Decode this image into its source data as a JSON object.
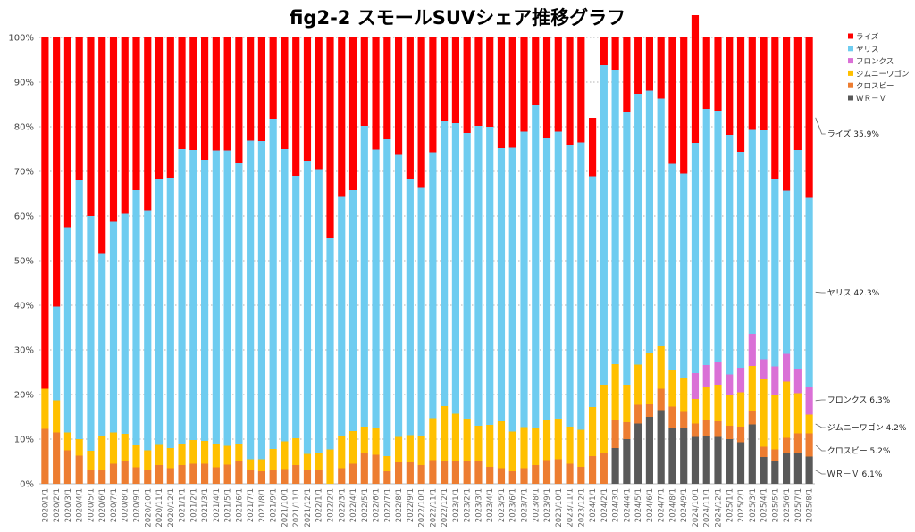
{
  "chart_data": {
    "type": "bar",
    "stacked": true,
    "title": "fig2-2 スモールSUVシェア推移グラフ",
    "ylim": [
      0,
      100
    ],
    "y_ticks": [
      "0%",
      "10%",
      "20%",
      "30%",
      "40%",
      "50%",
      "60%",
      "70%",
      "80%",
      "90%",
      "100%"
    ],
    "grid": true,
    "legend_position": "right",
    "categories": [
      "2020/1/1",
      "2020/2/1",
      "2020/3/1",
      "2020/4/1",
      "2020/5/1",
      "2020/6/1",
      "2020/7/1",
      "2020/8/1",
      "2020/9/1",
      "2020/10/1",
      "2020/11/1",
      "2020/12/1",
      "2021/1/1",
      "2021/2/1",
      "2021/3/1",
      "2021/4/1",
      "2021/5/1",
      "2021/6/1",
      "2021/7/1",
      "2021/8/1",
      "2021/9/1",
      "2021/10/1",
      "2021/11/1",
      "2021/12/1",
      "2022/1/1",
      "2022/2/1",
      "2022/3/1",
      "2022/4/1",
      "2022/5/1",
      "2022/6/1",
      "2022/7/1",
      "2022/8/1",
      "2022/9/1",
      "2022/10/1",
      "2022/11/1",
      "2022/12/1",
      "2023/1/1",
      "2023/2/1",
      "2023/3/1",
      "2023/4/1",
      "2023/5/1",
      "2023/6/1",
      "2023/7/1",
      "2023/8/1",
      "2023/9/1",
      "2023/10/1",
      "2023/11/1",
      "2023/12/1",
      "2024/1/1",
      "2024/2/1",
      "2024/3/1",
      "2024/4/1",
      "2024/5/1",
      "2024/6/1",
      "2024/7/1",
      "2024/8/1",
      "2024/9/1",
      "2024/10/1",
      "2024/11/1",
      "2024/12/1",
      "2025/1/1",
      "2025/2/1",
      "2025/3/1",
      "2025/4/1",
      "2025/5/1",
      "2025/6/1",
      "2025/7/1",
      "2025/8/1"
    ],
    "series": [
      {
        "name": "ＷＲ－Ｖ",
        "color": "#595959",
        "values": [
          0,
          0,
          0,
          0,
          0,
          0,
          0,
          0,
          0,
          0,
          0,
          0,
          0,
          0,
          0,
          0,
          0,
          0,
          0,
          0,
          0,
          0,
          0,
          0,
          0,
          0,
          0,
          0,
          0,
          0,
          0,
          0,
          0,
          0,
          0,
          0,
          0,
          0,
          0,
          0,
          0,
          0,
          0,
          0,
          0,
          0,
          0,
          0,
          0,
          0,
          8,
          10,
          13.5,
          15,
          16.5,
          12.5,
          12.5,
          10.5,
          10.7,
          10.5,
          10,
          9.3,
          13.3,
          6,
          5.2,
          7,
          7,
          6.1
        ]
      },
      {
        "name": "クロスビー",
        "color": "#ED7D31",
        "values": [
          12.3,
          11.5,
          7.5,
          6.3,
          3.2,
          3,
          4.5,
          5.2,
          3.7,
          3.2,
          4.2,
          3.5,
          4.2,
          4.5,
          4.5,
          3.7,
          4.3,
          5,
          3,
          2.8,
          3.2,
          3.3,
          4.2,
          3.2,
          3.2,
          0,
          3.5,
          4.5,
          7,
          6.5,
          2.8,
          4.8,
          4.8,
          4.2,
          5.3,
          5.2,
          5.2,
          5.2,
          5.2,
          3.8,
          3.5,
          2.8,
          3.5,
          4.2,
          5.3,
          5.5,
          4.5,
          3.8,
          6.2,
          7,
          6.3,
          3.8,
          4.2,
          2.8,
          4.8,
          4.8,
          3.6,
          3,
          3.5,
          3.5,
          3,
          3.5,
          3,
          2.3,
          2.5,
          3.3,
          4.3,
          5.2
        ]
      },
      {
        "name": "ジムニーワゴン",
        "color": "#FFC000",
        "values": [
          9,
          7.2,
          4,
          3.7,
          4.2,
          7.7,
          7,
          6,
          5.1,
          4.3,
          4.7,
          4.5,
          4.8,
          5.3,
          5.1,
          5.3,
          4.2,
          4,
          2.5,
          2.7,
          4.6,
          6.2,
          6,
          3.5,
          3.8,
          7.7,
          7.3,
          7.3,
          5.8,
          5.9,
          3.4,
          5.7,
          6.1,
          6.6,
          9.4,
          12.2,
          10.5,
          9.4,
          7.8,
          9.4,
          10.5,
          8.9,
          9.2,
          8.4,
          8.9,
          9.1,
          8.3,
          8.3,
          11,
          15.2,
          12.5,
          8.4,
          9,
          11.5,
          9.5,
          8.2,
          7.5,
          5.5,
          7.4,
          8.2,
          7,
          7.7,
          10.1,
          15.1,
          12.1,
          12.6,
          9,
          4.2
        ]
      },
      {
        "name": "フロンクス",
        "color": "#DA70D6",
        "values": [
          0,
          0,
          0,
          0,
          0,
          0,
          0,
          0,
          0,
          0,
          0,
          0,
          0,
          0,
          0,
          0,
          0,
          0,
          0,
          0,
          0,
          0,
          0,
          0,
          0,
          0,
          0,
          0,
          0,
          0,
          0,
          0,
          0,
          0,
          0,
          0,
          0,
          0,
          0,
          0,
          0,
          0,
          0,
          0,
          0,
          0,
          0,
          0,
          0,
          0,
          0,
          0,
          0,
          0,
          0,
          0,
          0,
          5.8,
          5,
          5,
          4.5,
          5.5,
          7.2,
          4.5,
          6.5,
          6.2,
          5.5,
          6.3
        ]
      },
      {
        "name": "ヤリス",
        "color": "#6ECCF0",
        "values": [
          0,
          21,
          46,
          58,
          52.6,
          41,
          47.2,
          49.3,
          57,
          53.8,
          59.4,
          60.6,
          66,
          65,
          63,
          65.7,
          66.2,
          62.8,
          71.4,
          71.3,
          74,
          65.5,
          58.8,
          65.7,
          63.5,
          47.3,
          53.5,
          54,
          67.4,
          62.5,
          71,
          63.2,
          57.4,
          55.5,
          59.6,
          63.9,
          65.1,
          64,
          67.2,
          66.8,
          61.2,
          63.6,
          66.2,
          72.2,
          63.2,
          64.3,
          63.1,
          64.4,
          51.7,
          71.6,
          66,
          61.2,
          60.7,
          58.8,
          55.5,
          46.2,
          45.9,
          51.6,
          57.4,
          56.4,
          53.7,
          48.4,
          45.7,
          51.3,
          42,
          36.6,
          49,
          42.3
        ]
      },
      {
        "name": "ライズ",
        "color": "#FF0000",
        "values": [
          78.7,
          60.3,
          42.5,
          32,
          40,
          48.3,
          41.3,
          39.5,
          34.2,
          38.7,
          31.7,
          31.4,
          25,
          25.2,
          27.4,
          25.3,
          25.3,
          28.2,
          23.1,
          23.2,
          18.2,
          25,
          31,
          27.6,
          29.5,
          45,
          35.7,
          34.2,
          19.8,
          25.1,
          22.8,
          26.3,
          31.7,
          33.7,
          25.7,
          18.7,
          19.2,
          21.4,
          19.8,
          20,
          25,
          24.7,
          21.1,
          15.2,
          22.6,
          21.1,
          24.1,
          23.5,
          13.1,
          6.2,
          7.2,
          16.6,
          12.6,
          11.9,
          13.7,
          28.3,
          30.5,
          28.6,
          16,
          16.4,
          21.8,
          25.6,
          20.7,
          20.8,
          31.7,
          34.3,
          25.2,
          35.9
        ]
      }
    ]
  },
  "annotations": [
    {
      "series": "ライズ",
      "label": "ライズ",
      "value_text": "35.9%"
    },
    {
      "series": "ヤリス",
      "label": "ヤリス",
      "value_text": "42.3%"
    },
    {
      "series": "フロンクス",
      "label": "フロンクス",
      "value_text": "6.3%"
    },
    {
      "series": "ジムニーワゴン",
      "label": "ジムニーワゴン",
      "value_text": "4.2%"
    },
    {
      "series": "クロスビー",
      "label": "クロスビー",
      "value_text": "5.2%"
    },
    {
      "series": "ＷＲ－Ｖ",
      "label": "ＷＲ－Ｖ",
      "value_text": "6.1%"
    }
  ],
  "legend": [
    "ライズ",
    "ヤリス",
    "フロンクス",
    "ジムニーワゴン",
    "クロスビー",
    "ＷＲ－Ｖ"
  ]
}
